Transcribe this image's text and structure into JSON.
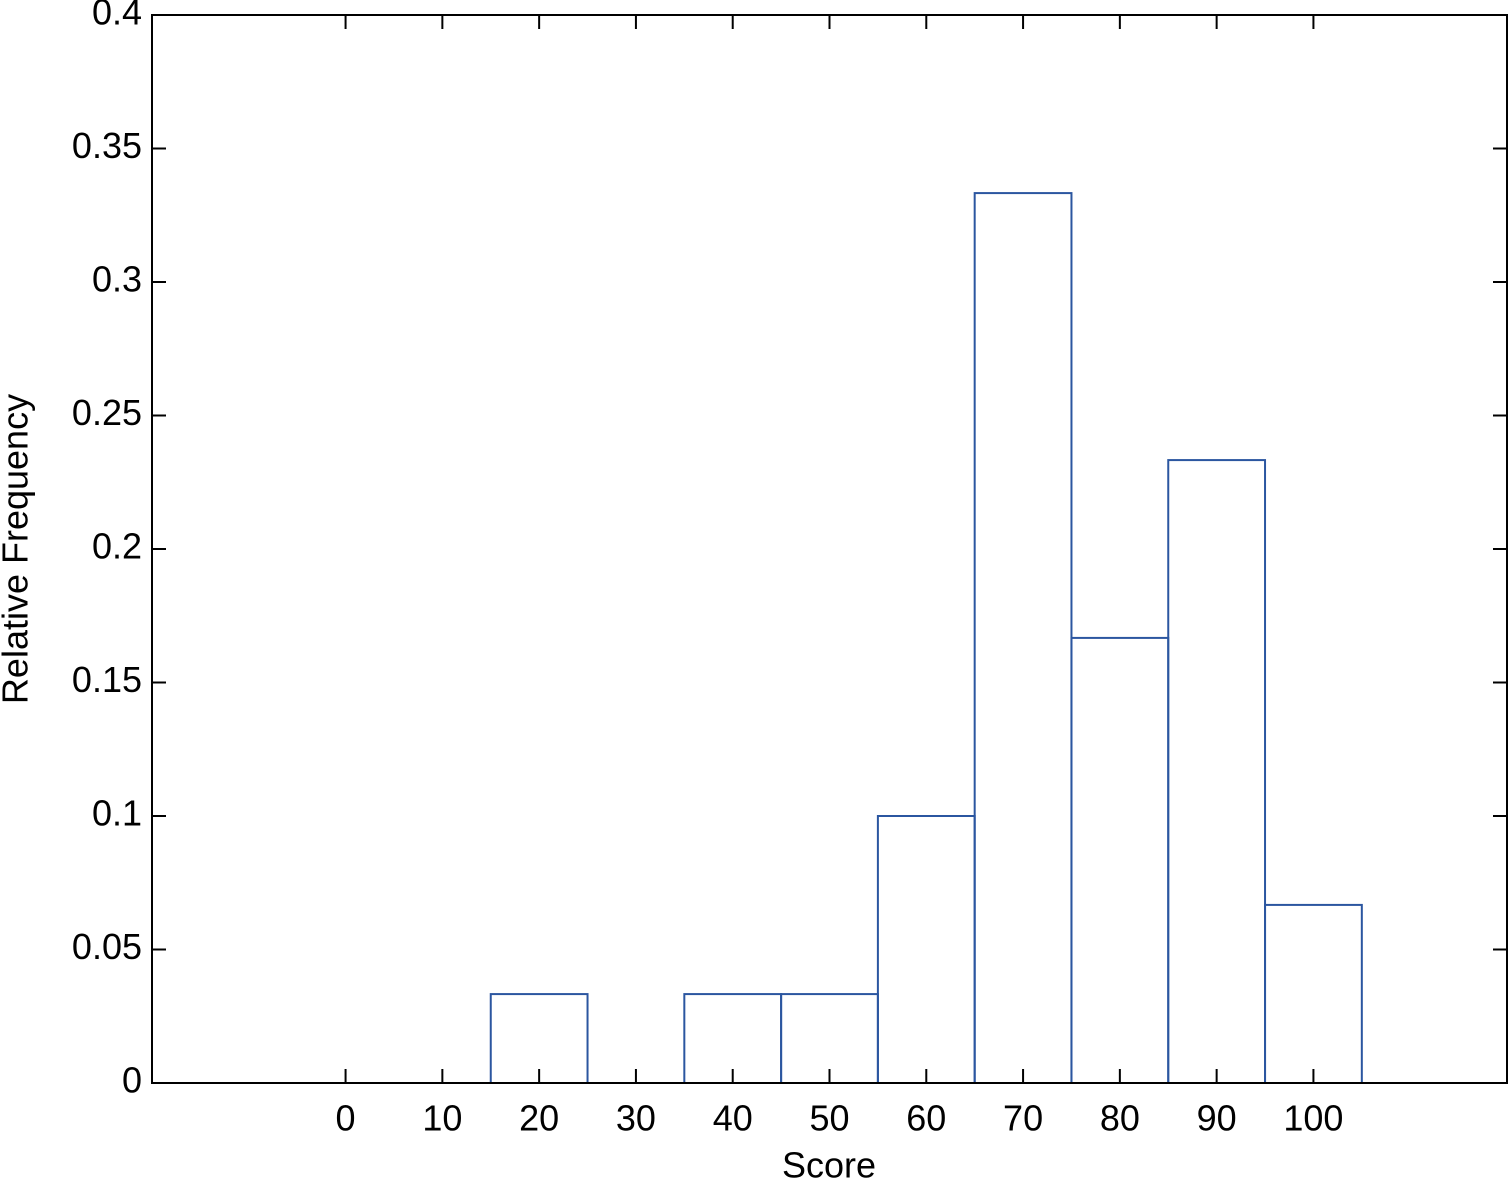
{
  "chart_data": {
    "type": "histogram",
    "xlabel": "Score",
    "ylabel": "Relative Frequency",
    "bins": [
      -5,
      5,
      15,
      25,
      35,
      45,
      55,
      65,
      75,
      85,
      95,
      105
    ],
    "values": [
      0,
      0,
      0.0333,
      0,
      0.0333,
      0.0333,
      0.1,
      0.3333,
      0.1667,
      0.2333,
      0.0667
    ],
    "color": "#2b56a0",
    "xlim": [
      -20,
      120
    ],
    "xticks": [
      0,
      10,
      20,
      30,
      40,
      50,
      60,
      70,
      80,
      90,
      100
    ],
    "ylim": [
      0,
      0.4
    ],
    "yticks": [
      0,
      0.05,
      0.1,
      0.15,
      0.2,
      0.25,
      0.3,
      0.35,
      0.4
    ]
  }
}
